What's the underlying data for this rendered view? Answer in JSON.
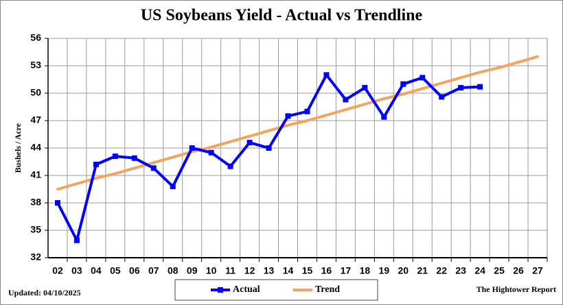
{
  "chart_data": {
    "type": "line",
    "title": "US Soybeans Yield - Actual vs Trendline",
    "y_label": "Bushels / Acre",
    "categories": [
      "02",
      "03",
      "04",
      "05",
      "06",
      "07",
      "08",
      "09",
      "10",
      "11",
      "12",
      "13",
      "14",
      "15",
      "16",
      "17",
      "18",
      "19",
      "20",
      "21",
      "22",
      "23",
      "24",
      "25",
      "26",
      "27"
    ],
    "series": [
      {
        "name": "Actual",
        "color": "#0000ff",
        "marker": "square",
        "values": [
          38.0,
          33.9,
          42.2,
          43.1,
          42.9,
          41.8,
          39.8,
          44.0,
          43.5,
          42.0,
          44.6,
          44.0,
          47.5,
          48.0,
          52.0,
          49.3,
          50.6,
          47.4,
          51.0,
          51.7,
          49.6,
          50.6,
          50.7,
          null,
          null,
          null
        ]
      },
      {
        "name": "Trend",
        "color": "#f4a460",
        "marker": "none",
        "values": [
          39.5,
          40.1,
          40.7,
          41.2,
          41.8,
          42.4,
          43.0,
          43.6,
          44.1,
          44.7,
          45.3,
          45.9,
          46.5,
          47.0,
          47.6,
          48.2,
          48.8,
          49.4,
          49.9,
          50.5,
          51.1,
          51.7,
          52.3,
          52.8,
          53.4,
          54.0
        ]
      }
    ],
    "ylim": [
      32,
      56
    ],
    "yticks": [
      32,
      35,
      38,
      41,
      44,
      47,
      50,
      53,
      56
    ],
    "grid": true,
    "legend": "bottom",
    "updated": "Updated: 04/10/2025",
    "source": "The Hightower Report"
  }
}
